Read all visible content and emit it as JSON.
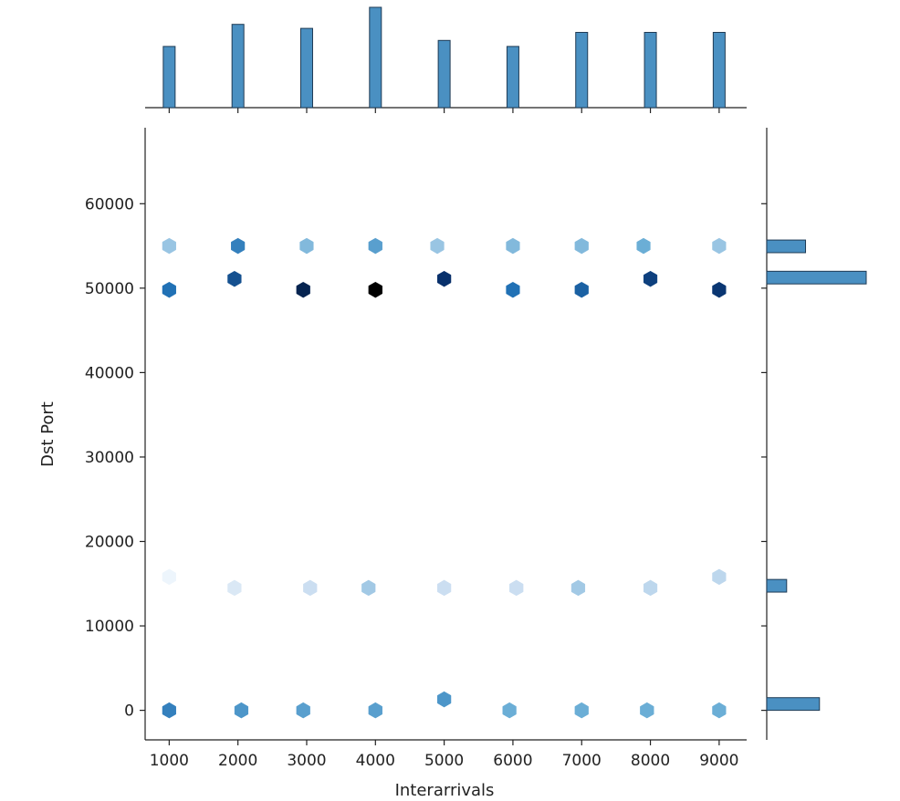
{
  "chart_data": {
    "type": "hexbin",
    "subtype": "jointplot with marginal histograms",
    "xlabel": "Interarrivals",
    "ylabel": "Dst Port",
    "xlim": [
      650,
      9400
    ],
    "ylim": [
      -3500,
      69000
    ],
    "x_ticks": [
      1000,
      2000,
      3000,
      4000,
      5000,
      6000,
      7000,
      8000,
      9000
    ],
    "y_ticks": [
      0,
      10000,
      20000,
      30000,
      40000,
      50000,
      60000
    ],
    "x_tick_labels": [
      "1000",
      "2000",
      "3000",
      "4000",
      "5000",
      "6000",
      "7000",
      "8000",
      "9000"
    ],
    "y_tick_labels": [
      "0",
      "10000",
      "20000",
      "30000",
      "40000",
      "50000",
      "60000"
    ],
    "colormap": [
      "#f7fbff",
      "#c6dbef",
      "#6baed6",
      "#2171b5",
      "#08306b",
      "#000000"
    ],
    "bar_color": "#4a90c2",
    "hexbins": [
      {
        "x": 1000,
        "y": 55000,
        "level": 0.3
      },
      {
        "x": 2000,
        "y": 55000,
        "level": 0.55
      },
      {
        "x": 3000,
        "y": 55000,
        "level": 0.35
      },
      {
        "x": 4000,
        "y": 55000,
        "level": 0.45
      },
      {
        "x": 4900,
        "y": 55000,
        "level": 0.3
      },
      {
        "x": 6000,
        "y": 55000,
        "level": 0.35
      },
      {
        "x": 7000,
        "y": 55000,
        "level": 0.35
      },
      {
        "x": 7900,
        "y": 55000,
        "level": 0.4
      },
      {
        "x": 9000,
        "y": 55000,
        "level": 0.3
      },
      {
        "x": 1000,
        "y": 49800,
        "level": 0.6
      },
      {
        "x": 1950,
        "y": 51100,
        "level": 0.7
      },
      {
        "x": 2950,
        "y": 49800,
        "level": 0.85
      },
      {
        "x": 4000,
        "y": 49800,
        "level": 1.0
      },
      {
        "x": 5000,
        "y": 51100,
        "level": 0.8
      },
      {
        "x": 6000,
        "y": 49800,
        "level": 0.6
      },
      {
        "x": 7000,
        "y": 49800,
        "level": 0.65
      },
      {
        "x": 8000,
        "y": 51100,
        "level": 0.75
      },
      {
        "x": 9000,
        "y": 49800,
        "level": 0.78
      },
      {
        "x": 1000,
        "y": 15800,
        "level": 0.04
      },
      {
        "x": 1950,
        "y": 14500,
        "level": 0.12
      },
      {
        "x": 3050,
        "y": 14500,
        "level": 0.18
      },
      {
        "x": 3900,
        "y": 14500,
        "level": 0.28
      },
      {
        "x": 5000,
        "y": 14500,
        "level": 0.18
      },
      {
        "x": 6050,
        "y": 14500,
        "level": 0.18
      },
      {
        "x": 6950,
        "y": 14500,
        "level": 0.28
      },
      {
        "x": 8000,
        "y": 14500,
        "level": 0.22
      },
      {
        "x": 9000,
        "y": 15800,
        "level": 0.22
      },
      {
        "x": 1000,
        "y": 0,
        "level": 0.55
      },
      {
        "x": 2050,
        "y": 0,
        "level": 0.48
      },
      {
        "x": 2950,
        "y": 0,
        "level": 0.45
      },
      {
        "x": 4000,
        "y": 0,
        "level": 0.45
      },
      {
        "x": 5000,
        "y": 1300,
        "level": 0.48
      },
      {
        "x": 5950,
        "y": 0,
        "level": 0.4
      },
      {
        "x": 7000,
        "y": 0,
        "level": 0.4
      },
      {
        "x": 7950,
        "y": 0,
        "level": 0.4
      },
      {
        "x": 9000,
        "y": 0,
        "level": 0.4
      }
    ],
    "x_marginal_hist": [
      {
        "x": 1000,
        "count": 0.61
      },
      {
        "x": 2000,
        "count": 0.83
      },
      {
        "x": 3000,
        "count": 0.79
      },
      {
        "x": 4000,
        "count": 1.0
      },
      {
        "x": 5000,
        "count": 0.67
      },
      {
        "x": 6000,
        "count": 0.61
      },
      {
        "x": 7000,
        "count": 0.75
      },
      {
        "x": 8000,
        "count": 0.75
      },
      {
        "x": 9000,
        "count": 0.75
      }
    ],
    "y_marginal_hist": [
      {
        "y0": 0,
        "y1": 1500,
        "count": 0.53
      },
      {
        "y0": 14000,
        "y1": 15500,
        "count": 0.2
      },
      {
        "y0": 50500,
        "y1": 52000,
        "count": 1.0
      },
      {
        "y0": 54200,
        "y1": 55700,
        "count": 0.39
      }
    ]
  }
}
